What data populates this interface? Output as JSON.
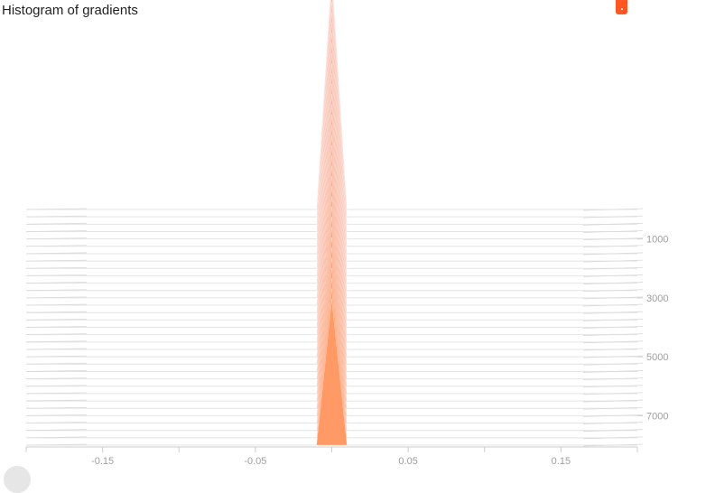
{
  "chart_data": {
    "type": "area",
    "title": "Histogram of gradients",
    "x_ticks": [
      "-0.15",
      "-0.05",
      "0.05",
      "0.15"
    ],
    "x_tick_values": [
      -0.15,
      -0.05,
      0.05,
      0.15
    ],
    "xlim": [
      -0.2,
      0.2
    ],
    "y_ticks": [
      "1000",
      "3000",
      "5000",
      "7000"
    ],
    "y_tick_values": [
      1000,
      3000,
      5000,
      7000
    ],
    "ylim": [
      0,
      8000
    ],
    "grid": false,
    "legend": "none",
    "histogram_bounds": [
      -0.01,
      0.01
    ],
    "histogram_center": 0,
    "first_step": 0,
    "last_step": 8000,
    "steps_shown": 33,
    "first_peak_height": 2.2,
    "last_peak_height": 1.35,
    "colors": {
      "early": "#f7b2a0",
      "late": "#ff9966",
      "axis": "#cccccc",
      "slice_line": "#e4e4e4"
    }
  },
  "header": {
    "title": "Histogram of gradients"
  },
  "badge": {
    "icon": "pin-icon",
    "color": "#ff5722"
  }
}
